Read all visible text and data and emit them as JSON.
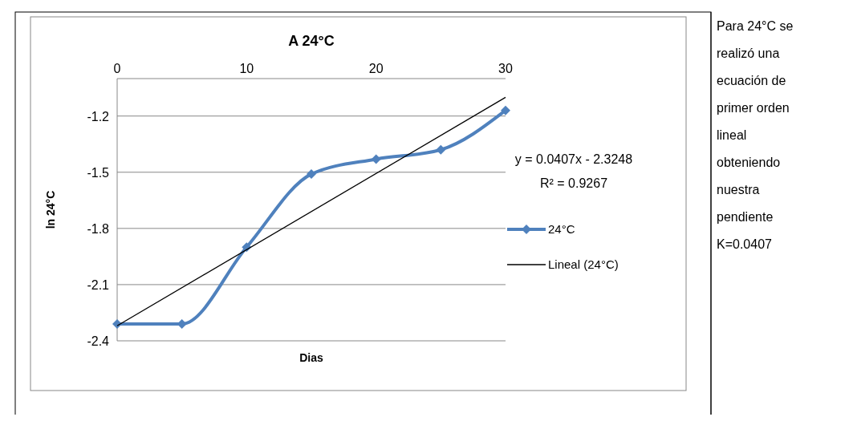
{
  "chart_data": {
    "type": "line",
    "title": "A 24°C",
    "xlabel": "Dias",
    "ylabel": "ln 24°C",
    "xlim": [
      0,
      30
    ],
    "xticks": [
      0,
      10,
      20,
      30
    ],
    "ylim": [
      -2.4,
      -1.0
    ],
    "yticks": [
      -2.4,
      -2.1,
      -1.8,
      -1.5,
      -1.2
    ],
    "grid": "y",
    "legend": "right",
    "line_style": "solid",
    "series": [
      {
        "name": "24°C",
        "color": "#4f81bd",
        "marker": "diamond",
        "x": [
          0,
          5,
          10,
          15,
          20,
          25,
          30
        ],
        "values": [
          -2.31,
          -2.31,
          -1.9,
          -1.51,
          -1.43,
          -1.38,
          -1.17
        ]
      },
      {
        "name": "Lineal (24°C)",
        "type": "line",
        "color": "#000000",
        "marker": "none",
        "x": [
          0,
          30
        ],
        "values": [
          -2.32,
          -1.1
        ]
      }
    ],
    "annotations": [
      "y = 0.0407x - 2.3248",
      "R² = 0.9267",
      "Para 24°C se realizó una ecuación de primer orden lineal obteniendo nuestra pendiente K=0.0407"
    ]
  }
}
